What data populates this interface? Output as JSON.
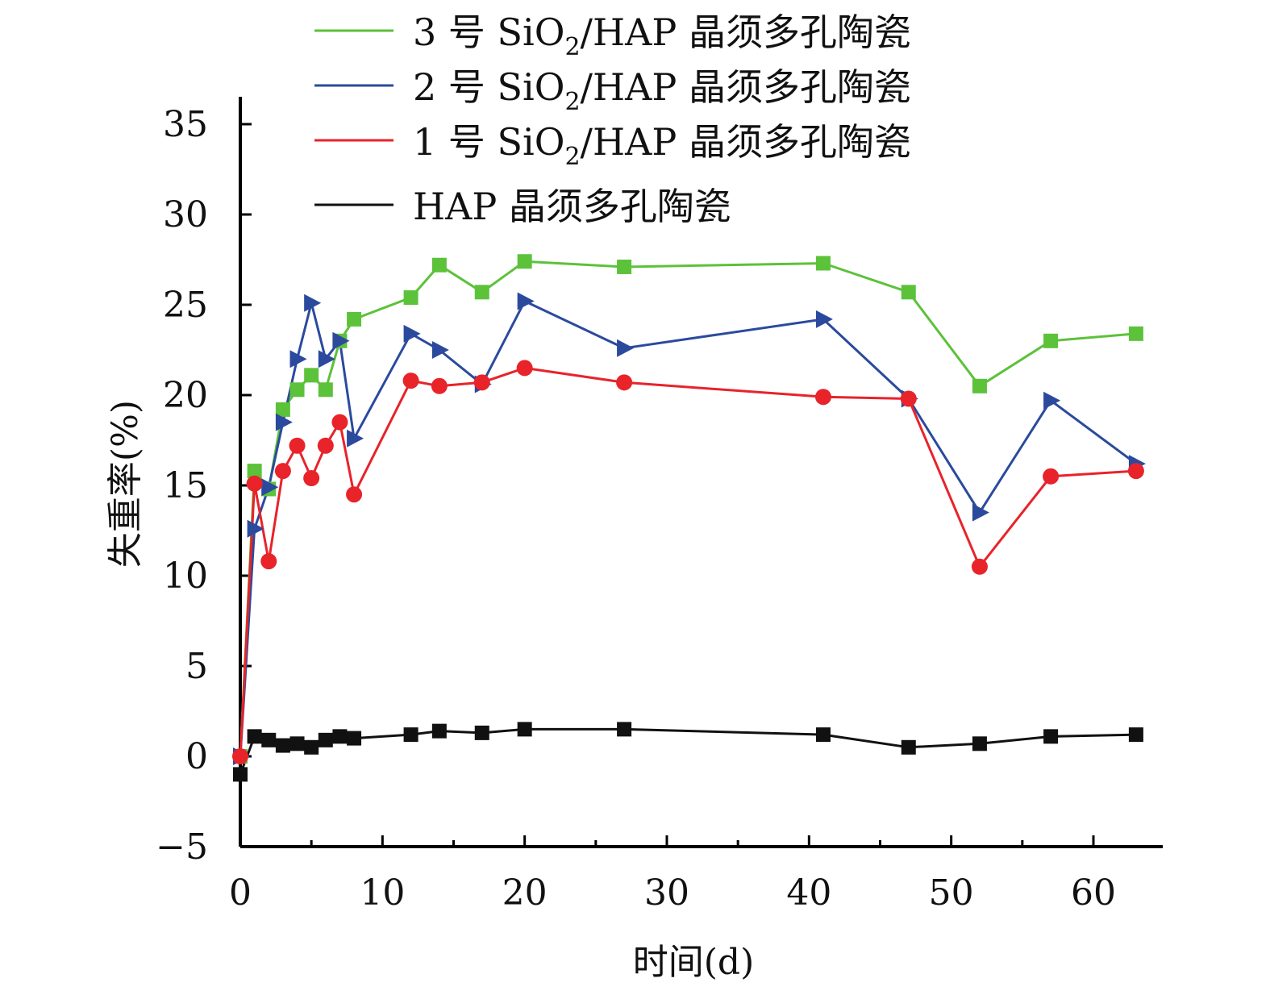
{
  "chart_data": {
    "type": "line",
    "title": "",
    "xlabel": "时间(d)",
    "ylabel": "失重率(%)",
    "xlim": [
      0,
      65
    ],
    "ylim": [
      -5,
      37
    ],
    "x_ticks": [
      0,
      10,
      20,
      30,
      40,
      50,
      60
    ],
    "x_tick_labels": [
      "0",
      "10",
      "20",
      "30",
      "40",
      "50",
      "60"
    ],
    "y_ticks": [
      -5,
      0,
      5,
      10,
      15,
      20,
      25,
      30,
      35
    ],
    "y_tick_labels": [
      "−5",
      "0",
      "5",
      "10",
      "15",
      "20",
      "25",
      "30",
      "35"
    ],
    "grid": false,
    "legend_position": "top-center",
    "series": [
      {
        "key": "s3",
        "legend_prefix": "3 号 SiO",
        "legend_sub": "2",
        "legend_suffix": "/HAP 晶须多孔陶瓷",
        "color": "#5cc23a",
        "marker": "square",
        "x": [
          0,
          1,
          2,
          3,
          4,
          5,
          6,
          7,
          8,
          12,
          14,
          17,
          20,
          27,
          41,
          47,
          52,
          57,
          63
        ],
        "y": [
          0,
          15.8,
          14.8,
          19.2,
          20.3,
          21.1,
          20.3,
          23,
          24.2,
          25.4,
          27.2,
          25.7,
          27.4,
          27.1,
          27.3,
          25.7,
          20.5,
          23,
          23.4
        ]
      },
      {
        "key": "s2",
        "legend_prefix": "2 号 SiO",
        "legend_sub": "2",
        "legend_suffix": "/HAP 晶须多孔陶瓷",
        "color": "#2b4a9e",
        "marker": "triangle",
        "x": [
          0,
          1,
          2,
          3,
          4,
          5,
          6,
          7,
          8,
          12,
          14,
          17,
          20,
          27,
          41,
          47,
          52,
          57,
          63
        ],
        "y": [
          0,
          12.6,
          14.9,
          18.5,
          22,
          25.1,
          22,
          23,
          17.6,
          23.4,
          22.5,
          20.6,
          25.2,
          22.6,
          24.2,
          19.8,
          13.5,
          19.7,
          16.2
        ]
      },
      {
        "key": "s1",
        "legend_prefix": "1 号 SiO",
        "legend_sub": "2",
        "legend_suffix": "/HAP 晶须多孔陶瓷",
        "color": "#e8232a",
        "marker": "circle",
        "x": [
          0,
          1,
          2,
          3,
          4,
          5,
          6,
          7,
          8,
          12,
          14,
          17,
          20,
          27,
          41,
          47,
          52,
          57,
          63
        ],
        "y": [
          0,
          15.1,
          10.8,
          15.8,
          17.2,
          15.4,
          17.2,
          18.5,
          14.5,
          20.8,
          20.5,
          20.7,
          21.5,
          20.7,
          19.9,
          19.8,
          10.5,
          15.5,
          15.8
        ]
      },
      {
        "key": "s0",
        "legend_prefix": "HAP 晶须多孔陶瓷",
        "legend_sub": "",
        "legend_suffix": "",
        "color": "#111111",
        "marker": "square",
        "x": [
          0,
          1,
          2,
          3,
          4,
          5,
          6,
          7,
          8,
          12,
          14,
          17,
          20,
          27,
          41,
          47,
          52,
          57,
          63
        ],
        "y": [
          -1,
          1.1,
          0.9,
          0.6,
          0.7,
          0.5,
          0.9,
          1.1,
          1.0,
          1.2,
          1.4,
          1.3,
          1.5,
          1.5,
          1.2,
          0.5,
          0.7,
          1.1,
          1.2
        ]
      }
    ]
  }
}
